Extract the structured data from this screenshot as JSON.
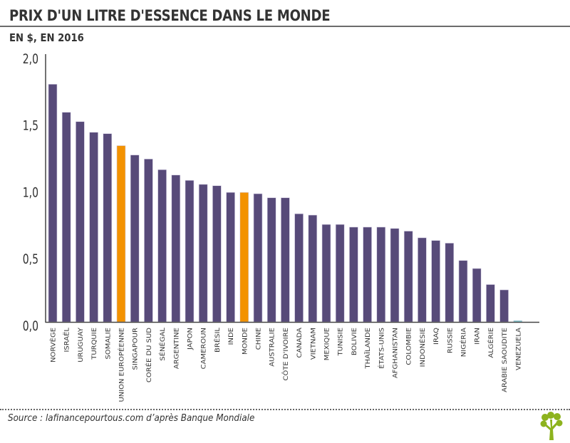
{
  "header": {
    "title": "PRIX D'UN LITRE D'ESSENCE DANS LE MONDE",
    "subtitle": "EN $, EN 2016"
  },
  "footer": {
    "source": "Source : lafinancepourtous.com d’après Banque Mondiale",
    "logo_icon": "tree-logo-icon"
  },
  "colors": {
    "default_bar": "#574A79",
    "highlight_bar": "#F39200",
    "venezuela_bar": "#6FC7C9",
    "axis": "#444444",
    "logo": "#8DB31E"
  },
  "chart_data": {
    "type": "bar",
    "title": "PRIX D'UN LITRE D'ESSENCE DANS LE MONDE",
    "subtitle": "EN $, EN 2016",
    "xlabel": "",
    "ylabel": "EN $",
    "ylim": [
      0,
      2.0
    ],
    "yticks": [
      0,
      0.5,
      1.0,
      1.5,
      2.0
    ],
    "ytick_labels": [
      "0,0",
      "0,5",
      "1,0",
      "1,5",
      "2,0"
    ],
    "grid": false,
    "legend": "none",
    "categories": [
      "NORVÈGE",
      "ISRAËL",
      "URUGUAY",
      "TURQUIE",
      "SOMALIE",
      "UNION EUROPÉENNE",
      "SINGAPOUR",
      "CORÉE DU SUD",
      "SÉNÉGAL",
      "ARGENTINE",
      "JAPON",
      "CAMEROUN",
      "BRÉSIL",
      "INDE",
      "MONDE",
      "CHINE",
      "AUSTRALIE",
      "CÔTE D'IVOIRE",
      "CANADA",
      "VIETNAM",
      "MEXIQUE",
      "TUNISIE",
      "BOLIVIE",
      "THAÏLANDE",
      "ÉTATS-UNIS",
      "AFGHANISTAN",
      "COLOMBIE",
      "INDONÉSIE",
      "IRAQ",
      "RUSSIE",
      "NIGÉRIA",
      "IRAN",
      "ALGÉRIE",
      "ARABIE SAOUDITE",
      "VENEZUELA"
    ],
    "values": [
      1.78,
      1.57,
      1.5,
      1.42,
      1.41,
      1.32,
      1.25,
      1.22,
      1.14,
      1.1,
      1.06,
      1.03,
      1.02,
      0.97,
      0.97,
      0.96,
      0.93,
      0.93,
      0.81,
      0.8,
      0.73,
      0.73,
      0.71,
      0.71,
      0.71,
      0.7,
      0.68,
      0.63,
      0.61,
      0.59,
      0.46,
      0.4,
      0.28,
      0.24,
      0.01
    ],
    "highlighted": [
      "UNION EUROPÉENNE",
      "MONDE"
    ]
  }
}
